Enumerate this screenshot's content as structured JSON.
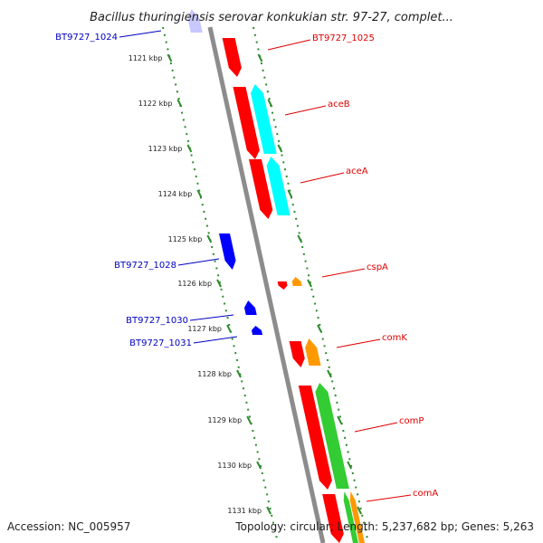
{
  "title": "Bacillus thuringiensis serovar konkukian str. 97-27, complet...",
  "footer": {
    "accession": "Accession: NC_005957",
    "summary": "Topology: circular; Length: 5,237,682 bp; Genes: 5,263"
  },
  "colors": {
    "backbone": "#8c8c8c",
    "ticks": "#2e8b2e",
    "forward_label": "#e00000",
    "reverse_label": "#0000c0",
    "gene_red": "#ff0000",
    "gene_cyan": "#00ffff",
    "gene_orange": "#ff9900",
    "gene_green": "#33cc33",
    "gene_blue": "#0000ff",
    "gene_lavender": "#c8c8ff"
  },
  "ticks": [
    "1121 kbp",
    "1122 kbp",
    "1123 kbp",
    "1124 kbp",
    "1125 kbp",
    "1126 kbp",
    "1127 kbp",
    "1128 kbp",
    "1129 kbp",
    "1130 kbp",
    "1131 kbp"
  ],
  "gene_labels": {
    "forward": [
      "BT9727_1025",
      "aceB",
      "aceA",
      "cspA",
      "comK",
      "comP",
      "comA"
    ],
    "reverse": [
      "BT9727_1024",
      "BT9727_1028",
      "BT9727_1030",
      "BT9727_1031"
    ]
  }
}
